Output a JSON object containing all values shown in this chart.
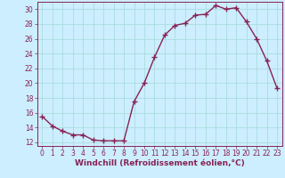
{
  "x": [
    0,
    1,
    2,
    3,
    4,
    5,
    6,
    7,
    8,
    9,
    10,
    11,
    12,
    13,
    14,
    15,
    16,
    17,
    18,
    19,
    20,
    21,
    22,
    23
  ],
  "y": [
    15.5,
    14.2,
    13.5,
    13.0,
    13.0,
    12.3,
    12.2,
    12.2,
    12.2,
    17.5,
    20.0,
    23.5,
    26.5,
    27.8,
    28.1,
    29.2,
    29.3,
    30.5,
    30.0,
    30.2,
    28.3,
    26.0,
    23.0,
    19.3
  ],
  "line_color": "#882255",
  "marker": "+",
  "marker_size": 4,
  "linewidth": 1.0,
  "xlim": [
    -0.5,
    23.5
  ],
  "ylim": [
    11.5,
    31.0
  ],
  "yticks": [
    12,
    14,
    16,
    18,
    20,
    22,
    24,
    26,
    28,
    30
  ],
  "xticks": [
    0,
    1,
    2,
    3,
    4,
    5,
    6,
    7,
    8,
    9,
    10,
    11,
    12,
    13,
    14,
    15,
    16,
    17,
    18,
    19,
    20,
    21,
    22,
    23
  ],
  "xlabel": "Windchill (Refroidissement éolien,°C)",
  "xlabel_fontsize": 6.5,
  "tick_fontsize": 5.5,
  "background_color": "#cceeff",
  "grid_color": "#aadddd",
  "line_border_color": "#882255",
  "tick_color": "#882255",
  "label_color": "#882255"
}
